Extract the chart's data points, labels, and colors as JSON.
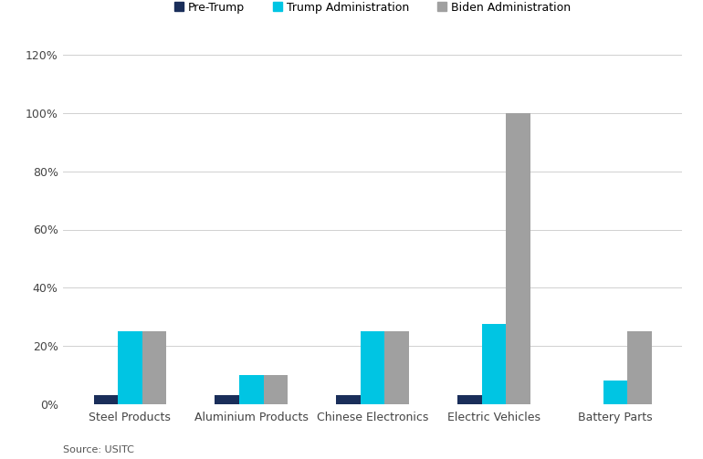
{
  "categories": [
    "Steel Products",
    "Aluminium Products",
    "Chinese Electronics",
    "Electric Vehicles",
    "Battery Parts"
  ],
  "series": [
    {
      "label": "Pre-Trump",
      "color": "#1a2e5a",
      "values": [
        3,
        3,
        3,
        3,
        0
      ]
    },
    {
      "label": "Trump Administration",
      "color": "#00c5e3",
      "values": [
        25,
        10,
        25,
        27.5,
        8
      ]
    },
    {
      "label": "Biden Administration",
      "color": "#a0a0a0",
      "values": [
        25,
        10,
        25,
        100,
        25
      ]
    }
  ],
  "ylim": [
    0,
    120
  ],
  "yticks": [
    0,
    20,
    40,
    60,
    80,
    100,
    120
  ],
  "ytick_labels": [
    "0%",
    "20%",
    "40%",
    "60%",
    "80%",
    "100%",
    "120%"
  ],
  "source_text": "Source: USITC",
  "background_color": "#ffffff",
  "grid_color": "#d0d0d0",
  "bar_width": 0.2
}
